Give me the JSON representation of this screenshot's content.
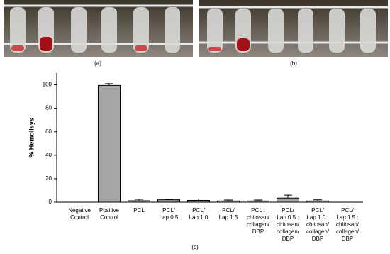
{
  "chart_data": {
    "type": "bar",
    "y_label": "% Hemolisys",
    "panel_labels": [
      "(a)",
      "(b)",
      "(c)"
    ],
    "categories": [
      [
        "Negative",
        "Control"
      ],
      [
        "Positive",
        "Control"
      ],
      [
        "PCL"
      ],
      [
        "PCL/",
        "Lap 0.5"
      ],
      [
        "PCL/",
        "Lap 1.0"
      ],
      [
        "PCL/",
        "Lap 1.5"
      ],
      [
        "PCL :",
        "chitosan/",
        "collagen/",
        "DBP"
      ],
      [
        "PCL/",
        "Lap 0.5 :",
        "chitosan/",
        "collagen/",
        "DBP"
      ],
      [
        "PCL/",
        "Lap 1.0 :",
        "chitosan/",
        "collagen/",
        "DBP"
      ],
      [
        "PCL/",
        "Lap 1.5 :",
        "chitosan/",
        "collagen/",
        "DBP"
      ]
    ],
    "values": [
      0,
      99.5,
      1.2,
      2.0,
      1.5,
      1.0,
      1.0,
      3.5,
      1.0,
      0
    ],
    "errors": [
      0,
      1.5,
      1.2,
      0.5,
      1.2,
      0.8,
      0.8,
      2.5,
      1.0,
      0
    ],
    "color": "#a6a6a6",
    "ylim": [
      0,
      110
    ],
    "yticks": [
      0,
      20,
      40,
      60,
      80,
      100
    ],
    "grid": false
  }
}
